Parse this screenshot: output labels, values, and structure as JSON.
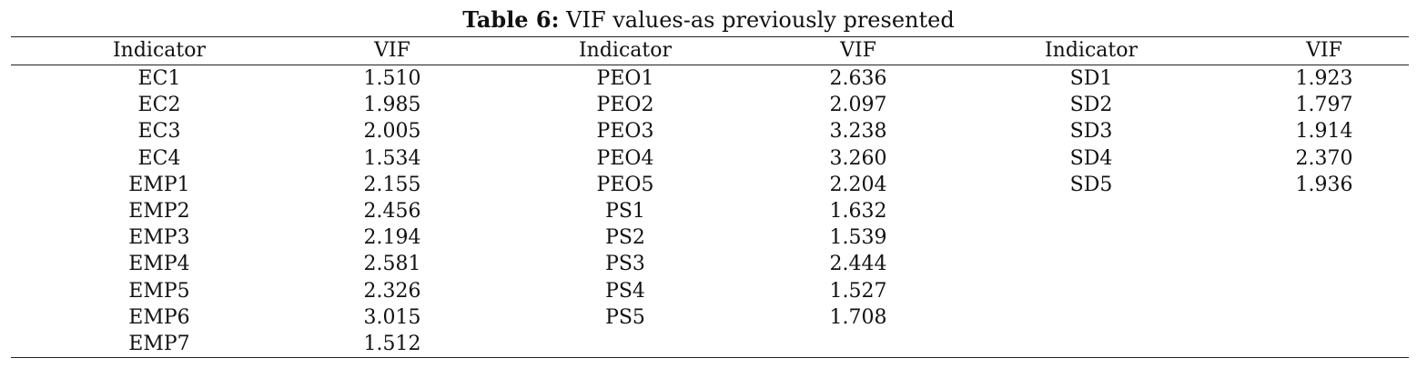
{
  "caption": {
    "label": "Table 6:",
    "text": " VIF values-as previously presented"
  },
  "headers": [
    "Indicator",
    "VIF",
    "Indicator",
    "VIF",
    "Indicator",
    "VIF"
  ],
  "rows": [
    [
      "EC1",
      "1.510",
      "PEO1",
      "2.636",
      "SD1",
      "1.923"
    ],
    [
      "EC2",
      "1.985",
      "PEO2",
      "2.097",
      "SD2",
      "1.797"
    ],
    [
      "EC3",
      "2.005",
      "PEO3",
      "3.238",
      "SD3",
      "1.914"
    ],
    [
      "EC4",
      "1.534",
      "PEO4",
      "3.260",
      "SD4",
      "2.370"
    ],
    [
      "EMP1",
      "2.155",
      "PEO5",
      "2.204",
      "SD5",
      "1.936"
    ],
    [
      "EMP2",
      "2.456",
      "PS1",
      "1.632",
      "",
      ""
    ],
    [
      "EMP3",
      "2.194",
      "PS2",
      "1.539",
      "",
      ""
    ],
    [
      "EMP4",
      "2.581",
      "PS3",
      "2.444",
      "",
      ""
    ],
    [
      "EMP5",
      "2.326",
      "PS4",
      "1.527",
      "",
      ""
    ],
    [
      "EMP6",
      "3.015",
      "PS5",
      "1.708",
      "",
      ""
    ],
    [
      "EMP7",
      "1.512",
      "",
      "",
      "",
      ""
    ]
  ]
}
